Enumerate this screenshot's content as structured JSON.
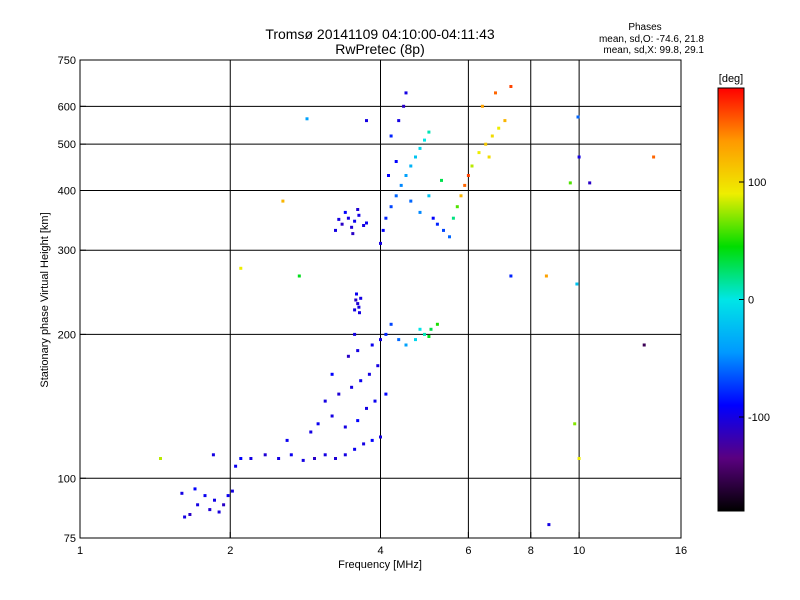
{
  "header": {
    "title": "Tromsø 20141109 04:10:00-04:11:43",
    "subtitle": "RwPretec (8p)"
  },
  "phase_stats": {
    "heading": "Phases",
    "line_o": "mean, sd,O: -74.6, 21.8",
    "line_x": "mean, sd,X:  99.8, 29.1"
  },
  "chart_data": {
    "type": "scatter",
    "title": "Tromsø 20141109 04:10:00-04:11:43",
    "subtitle": "RwPretec (8p)",
    "xlabel": "Frequency [MHz]",
    "ylabel": "Stationary phase Virtual Height [km]",
    "xscale": "log",
    "yscale": "log",
    "xlim": [
      1,
      16
    ],
    "ylim": [
      75,
      750
    ],
    "xticks": [
      1,
      2,
      4,
      6,
      8,
      10,
      16
    ],
    "yticks": [
      75,
      100,
      200,
      300,
      400,
      500,
      600,
      750
    ],
    "grid": true,
    "colorbar": {
      "label": "[deg]",
      "min": -180,
      "max": 180,
      "ticks": [
        100,
        0,
        -100
      ],
      "colormap": [
        "#000000",
        "#5a0080",
        "#0000ff",
        "#0099ff",
        "#00e6e6",
        "#00dd00",
        "#eeee00",
        "#ff9900",
        "#ff0000"
      ]
    },
    "series": [
      {
        "points": [
          [
            1.62,
            83,
            -100
          ],
          [
            1.66,
            84,
            -110
          ],
          [
            1.72,
            88,
            -100
          ],
          [
            1.78,
            92,
            -95
          ],
          [
            1.82,
            86,
            -105
          ],
          [
            1.86,
            90,
            -98
          ],
          [
            1.9,
            85,
            -102
          ],
          [
            1.94,
            88,
            -110
          ],
          [
            1.98,
            92,
            -95
          ],
          [
            2.02,
            94,
            -100
          ],
          [
            1.6,
            93,
            -100
          ],
          [
            1.7,
            95,
            -90
          ],
          [
            1.85,
            112,
            -100
          ],
          [
            2.05,
            106,
            -95
          ],
          [
            2.1,
            110,
            -90
          ]
        ]
      },
      {
        "points": [
          [
            2.2,
            110,
            -100
          ],
          [
            2.35,
            112,
            -105
          ],
          [
            2.5,
            110,
            -100
          ],
          [
            2.65,
            112,
            -95
          ],
          [
            2.8,
            109,
            -100
          ],
          [
            2.95,
            110,
            -110
          ],
          [
            3.1,
            112,
            -100
          ],
          [
            3.25,
            110,
            -105
          ],
          [
            3.4,
            112,
            -100
          ],
          [
            3.55,
            115,
            -95
          ],
          [
            3.7,
            118,
            -100
          ],
          [
            3.85,
            120,
            -90
          ],
          [
            4.0,
            122,
            -100
          ],
          [
            2.6,
            120,
            -95
          ],
          [
            2.9,
            125,
            -100
          ],
          [
            3.0,
            130,
            -95
          ],
          [
            3.2,
            135,
            -100
          ],
          [
            3.4,
            128,
            -100
          ],
          [
            3.6,
            132,
            -90
          ],
          [
            3.75,
            140,
            -100
          ],
          [
            3.9,
            145,
            -95
          ],
          [
            4.1,
            150,
            -90
          ],
          [
            3.1,
            145,
            -100
          ],
          [
            3.3,
            150,
            -105
          ],
          [
            3.5,
            155,
            -100
          ],
          [
            3.65,
            160,
            -95
          ],
          [
            3.8,
            165,
            -100
          ],
          [
            3.95,
            172,
            -100
          ],
          [
            3.45,
            180,
            -110
          ],
          [
            3.6,
            185,
            -100
          ],
          [
            3.85,
            190,
            -95
          ],
          [
            4.0,
            195,
            -100
          ],
          [
            3.55,
            200,
            -100
          ],
          [
            3.2,
            165,
            -90
          ]
        ]
      },
      {
        "points": [
          [
            3.55,
            225,
            -100
          ],
          [
            3.6,
            232,
            -105
          ],
          [
            3.65,
            238,
            -100
          ],
          [
            3.58,
            243,
            -95
          ],
          [
            3.62,
            228,
            -100
          ],
          [
            3.57,
            236,
            -110
          ],
          [
            3.63,
            222,
            -100
          ]
        ]
      },
      {
        "points": [
          [
            4.1,
            200,
            -80
          ],
          [
            4.2,
            210,
            -70
          ],
          [
            4.35,
            195,
            -60
          ],
          [
            4.5,
            190,
            -40
          ],
          [
            4.7,
            195,
            -10
          ],
          [
            4.9,
            200,
            10
          ],
          [
            5.05,
            205,
            30
          ],
          [
            5.2,
            210,
            50
          ],
          [
            5.0,
            198,
            40
          ],
          [
            4.8,
            205,
            0
          ]
        ]
      },
      {
        "points": [
          [
            3.25,
            330,
            -100
          ],
          [
            3.35,
            340,
            -110
          ],
          [
            3.45,
            350,
            -100
          ],
          [
            3.5,
            335,
            -105
          ],
          [
            3.55,
            345,
            -95
          ],
          [
            3.62,
            355,
            -100
          ],
          [
            3.7,
            338,
            -100
          ],
          [
            3.4,
            360,
            -90
          ],
          [
            3.6,
            365,
            -105
          ],
          [
            3.3,
            348,
            -100
          ],
          [
            3.75,
            342,
            -95
          ],
          [
            3.52,
            325,
            -110
          ]
        ]
      },
      {
        "points": [
          [
            4.0,
            310,
            -100
          ],
          [
            4.05,
            330,
            -90
          ],
          [
            4.1,
            350,
            -80
          ],
          [
            4.2,
            370,
            -70
          ],
          [
            4.3,
            390,
            -60
          ],
          [
            4.4,
            410,
            -50
          ],
          [
            4.5,
            430,
            -40
          ],
          [
            4.6,
            450,
            -30
          ],
          [
            4.7,
            470,
            -20
          ],
          [
            4.8,
            490,
            -10
          ],
          [
            4.9,
            510,
            0
          ],
          [
            5.0,
            530,
            10
          ],
          [
            5.1,
            350,
            -90
          ],
          [
            5.2,
            340,
            -80
          ],
          [
            5.35,
            330,
            -70
          ],
          [
            5.5,
            320,
            -60
          ],
          [
            5.6,
            350,
            20
          ],
          [
            5.7,
            370,
            60
          ],
          [
            5.8,
            390,
            120
          ],
          [
            5.9,
            410,
            150
          ],
          [
            6.0,
            430,
            160
          ],
          [
            4.2,
            520,
            -80
          ],
          [
            4.35,
            560,
            -100
          ],
          [
            4.45,
            600,
            -110
          ],
          [
            4.5,
            640,
            -100
          ],
          [
            4.3,
            460,
            -90
          ],
          [
            4.6,
            380,
            -60
          ],
          [
            4.8,
            360,
            -50
          ],
          [
            5.0,
            390,
            -20
          ],
          [
            5.3,
            420,
            30
          ],
          [
            4.15,
            430,
            -90
          ]
        ]
      },
      {
        "points": [
          [
            6.1,
            450,
            80
          ],
          [
            6.3,
            480,
            90
          ],
          [
            6.5,
            500,
            110
          ],
          [
            6.7,
            520,
            100
          ],
          [
            6.9,
            540,
            90
          ],
          [
            7.1,
            560,
            120
          ],
          [
            6.4,
            600,
            130
          ],
          [
            6.8,
            640,
            150
          ],
          [
            7.3,
            660,
            160
          ],
          [
            6.6,
            470,
            100
          ]
        ]
      },
      {
        "points": [
          [
            1.45,
            110,
            80
          ],
          [
            2.1,
            275,
            90
          ],
          [
            2.55,
            380,
            120
          ],
          [
            2.75,
            265,
            40
          ],
          [
            2.85,
            565,
            -40
          ],
          [
            3.75,
            560,
            -100
          ],
          [
            7.3,
            265,
            -80
          ],
          [
            8.6,
            265,
            130
          ],
          [
            9.6,
            415,
            60
          ],
          [
            9.9,
            255,
            -20
          ],
          [
            9.95,
            570,
            -60
          ],
          [
            10.0,
            470,
            -100
          ],
          [
            10.5,
            415,
            -110
          ],
          [
            13.5,
            190,
            -150
          ],
          [
            14.1,
            470,
            150
          ],
          [
            9.8,
            130,
            70
          ],
          [
            10.0,
            110,
            90
          ],
          [
            8.7,
            80,
            -100
          ]
        ]
      }
    ]
  }
}
